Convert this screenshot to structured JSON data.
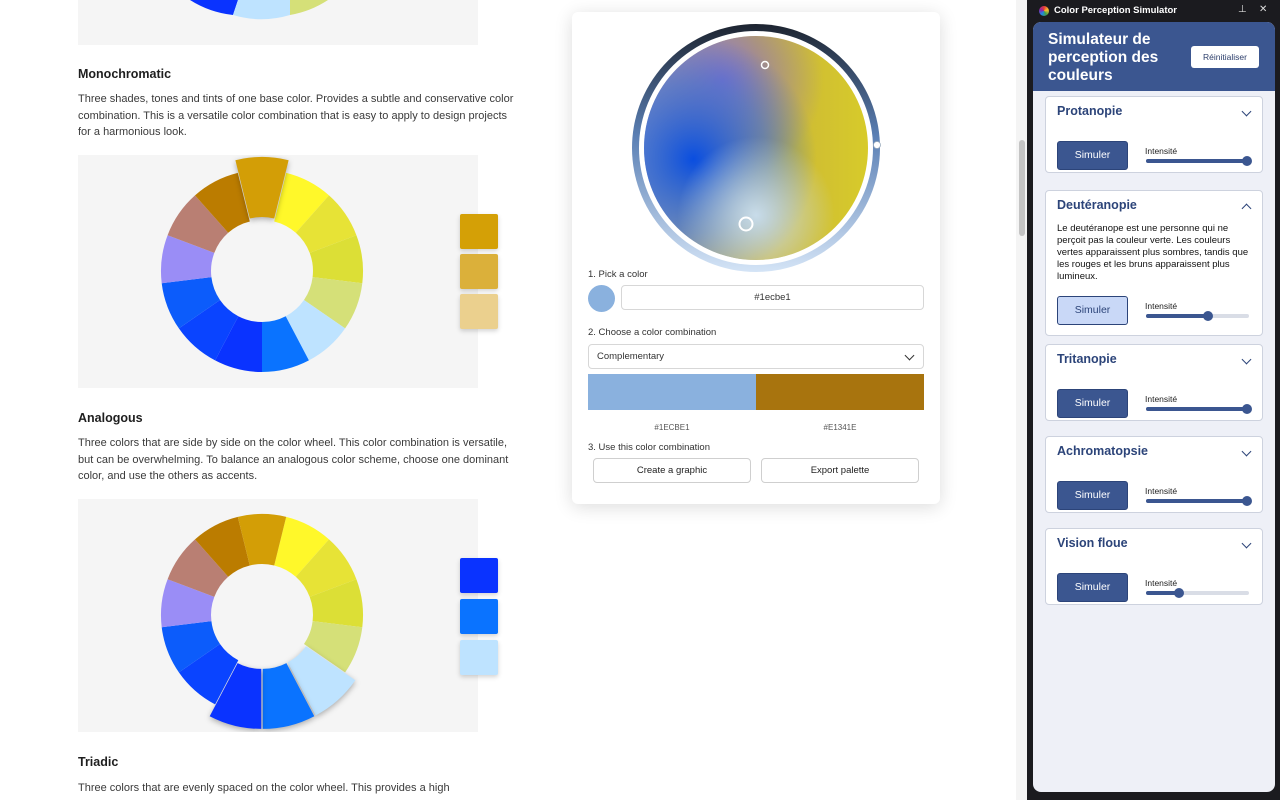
{
  "article": {
    "monochromatic": {
      "title": "Monochromatic",
      "text": "Three shades, tones and tints of one base color. Provides a subtle and conservative color combination. This is a versatile color combination that is easy to apply to design projects for a harmonious look.",
      "swatches": [
        "#D4A006",
        "#DBB03A",
        "#EBD08E"
      ]
    },
    "analogous": {
      "title": "Analogous",
      "text": "Three colors that are side by side on the color wheel. This color combination is versatile, but can be overwhelming. To balance an analogous color scheme, choose one dominant color, and use the others as accents.",
      "swatches": [
        "#0A33FF",
        "#0A73FF",
        "#BEE3FF"
      ]
    },
    "triadic": {
      "title": "Triadic",
      "text": "Three colors that are evenly spaced on the color wheel. This provides a high"
    },
    "wheel_colors": [
      "#FFF82A",
      "#E7E336",
      "#DCDF36",
      "#D5E078",
      "#BEE3FF",
      "#0A73FF",
      "#0A33FF",
      "#0A44FF",
      "#0C5CFB",
      "#9A8DF6",
      "#B97F73",
      "#BB7C00",
      "#D39E06"
    ]
  },
  "picker": {
    "step1_label": "1. Pick a color",
    "hex_value": "#1ecbe1",
    "step2_label": "2. Choose a color combination",
    "combination": "Complementary",
    "combo_colors": [
      "#8AB1DE",
      "#A8740E"
    ],
    "combo_hex": [
      "#1ECBE1",
      "#E1341E"
    ],
    "step3_label": "3. Use this color combination",
    "create_label": "Create a graphic",
    "export_label": "Export palette"
  },
  "simulator": {
    "window_title": "Color Perception Simulator",
    "heading": "Simulateur de perception des couleurs",
    "reset_label": "Réinitialiser",
    "intensity_label": "Intensité",
    "simulate_label": "Simuler",
    "modes": [
      {
        "name": "Protanopie",
        "expanded": false,
        "intensity": 0.98
      },
      {
        "name": "Deutéranopie",
        "expanded": true,
        "active": true,
        "intensity": 0.6,
        "description": "Le deutéranope est une personne qui ne perçoit pas la couleur verte. Les couleurs vertes apparaissent plus sombres, tandis que les rouges et les bruns apparaissent plus lumineux."
      },
      {
        "name": "Tritanopie",
        "expanded": false,
        "intensity": 0.98
      },
      {
        "name": "Achromatopsie",
        "expanded": false,
        "intensity": 0.98
      },
      {
        "name": "Vision floue",
        "expanded": false,
        "intensity": 0.32
      }
    ],
    "accent_color": "#3B5690"
  }
}
